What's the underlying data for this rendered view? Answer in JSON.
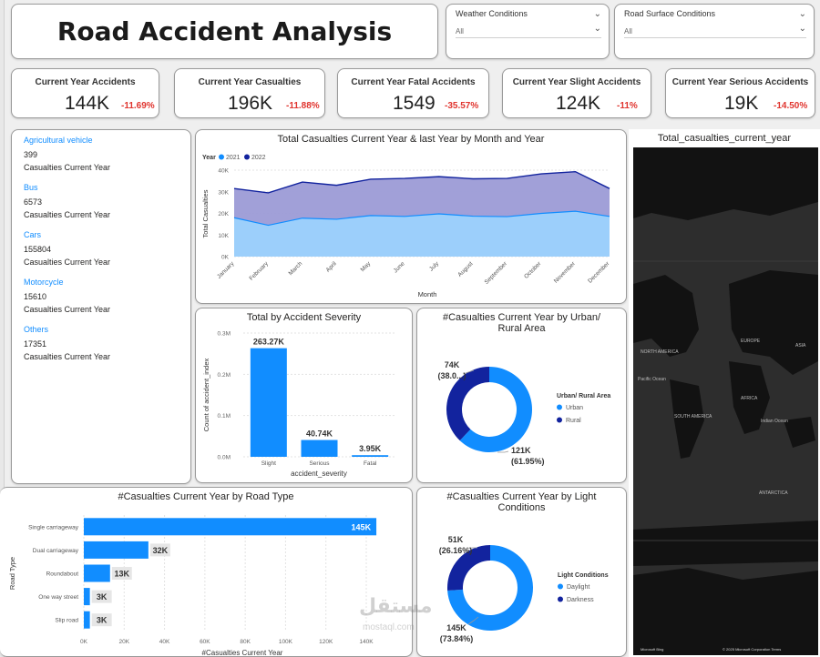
{
  "header": {
    "title": "Road Accident Analysis"
  },
  "slicers": [
    {
      "label": "Weather Conditions",
      "value": "All"
    },
    {
      "label": "Road Surface Conditions",
      "value": "All"
    }
  ],
  "kpis": [
    {
      "label": "Current Year Accidents",
      "value": "144K",
      "change": "-11.69%"
    },
    {
      "label": "Current Year Casualties",
      "value": "196K",
      "change": "-11.88%"
    },
    {
      "label": "Current Year Fatal Accidents",
      "value": "1549",
      "change": "-35.57%"
    },
    {
      "label": "Current Year Slight Accidents",
      "value": "124K",
      "change": "-11%"
    },
    {
      "label": "Current Year Serious Accidents",
      "value": "19K",
      "change": "-14.50%"
    }
  ],
  "vehicles": [
    {
      "name": "Agricultural vehicle",
      "value": "399",
      "sub": "Casualties Current Year"
    },
    {
      "name": "Bus",
      "value": "6573",
      "sub": "Casualties Current Year"
    },
    {
      "name": "Cars",
      "value": "155804",
      "sub": "Casualties Current Year"
    },
    {
      "name": "Motorcycle",
      "value": "15610",
      "sub": "Casualties Current Year"
    },
    {
      "name": "Others",
      "value": "17351",
      "sub": "Casualties Current Year"
    }
  ],
  "chart_data": [
    {
      "id": "monthly",
      "type": "area",
      "title": "Total Casualties Current Year & last Year by Month and Year",
      "legend_title": "Year",
      "categories": [
        "January",
        "February",
        "March",
        "April",
        "May",
        "June",
        "July",
        "August",
        "September",
        "October",
        "November",
        "December"
      ],
      "series": [
        {
          "name": "2021",
          "color": "#118dff",
          "values": [
            18000,
            14500,
            17800,
            17300,
            19000,
            18600,
            19800,
            18700,
            18500,
            20000,
            21000,
            18600
          ]
        },
        {
          "name": "2022",
          "color": "#12239e",
          "values": [
            31500,
            29500,
            34500,
            33000,
            35800,
            36200,
            37000,
            36000,
            36200,
            38300,
            39300,
            31500
          ]
        }
      ],
      "ylim": [
        0,
        40000
      ],
      "yticks": [
        "0K",
        "10K",
        "20K",
        "30K",
        "40K"
      ],
      "xlabel": "Month",
      "ylabel": "Total Casualties"
    },
    {
      "id": "severity",
      "type": "bar",
      "title": "Total by Accident Severity",
      "categories": [
        "Slight",
        "Serious",
        "Fatal"
      ],
      "values": [
        263270,
        40740,
        3950
      ],
      "data_labels": [
        "263.27K",
        "40.74K",
        "3.95K"
      ],
      "ylim": [
        0,
        300000
      ],
      "yticks": [
        "0.0M",
        "0.1M",
        "0.2M",
        "0.3M"
      ],
      "xlabel": "accident_severity",
      "ylabel": "Count of accident_index",
      "color": "#118dff"
    },
    {
      "id": "urban",
      "type": "pie",
      "title_lines": [
        "#Casualties Current Year by Urban/",
        "Rural Area"
      ],
      "legend_title": "Urban/ Rural Area",
      "slices": [
        {
          "name": "Urban",
          "value": 121000,
          "label": "121K",
          "pct": "(61.95%)",
          "color": "#118dff"
        },
        {
          "name": "Rural",
          "value": 74000,
          "label": "74K",
          "pct": "(38.0...)",
          "color": "#12239e"
        }
      ]
    },
    {
      "id": "roadtype",
      "type": "bar",
      "orientation": "horizontal",
      "title": "#Casualties Current Year by Road Type",
      "categories": [
        "Single carriageway",
        "Dual carriageway",
        "Roundabout",
        "One way street",
        "Slip road"
      ],
      "values": [
        145000,
        32000,
        13000,
        3000,
        3000
      ],
      "data_labels": [
        "145K",
        "32K",
        "13K",
        "3K",
        "3K"
      ],
      "xlim": [
        0,
        140000
      ],
      "xticks": [
        "0K",
        "20K",
        "40K",
        "60K",
        "80K",
        "100K",
        "120K",
        "140K"
      ],
      "xlabel": "#Casualties Current Year",
      "ylabel": "Road Type",
      "color": "#118dff"
    },
    {
      "id": "light",
      "type": "pie",
      "title_lines": [
        "#Casualties Current Year by Light",
        "Conditions"
      ],
      "legend_title": "Light Conditions",
      "slices": [
        {
          "name": "Daylight",
          "value": 145000,
          "label": "145K",
          "pct": "(73.84%)",
          "color": "#118dff"
        },
        {
          "name": "Darkness",
          "value": 51000,
          "label": "51K",
          "pct": "(26.16%)",
          "color": "#12239e"
        }
      ]
    }
  ],
  "map": {
    "title": "Total_casualties_current_year",
    "labels": [
      "NORTH AMERICA",
      "EUROPE",
      "ASIA",
      "AFRICA",
      "SOUTH AMERICA",
      "Pacific Ocean",
      "Indian Ocean",
      "ANTARCTICA"
    ],
    "attribution_left": "Microsoft Bing",
    "attribution_right": "© 2025 Microsoft Corporation  Terms"
  },
  "watermark": {
    "text": "مستقل",
    "sub": "mostaql.com"
  }
}
